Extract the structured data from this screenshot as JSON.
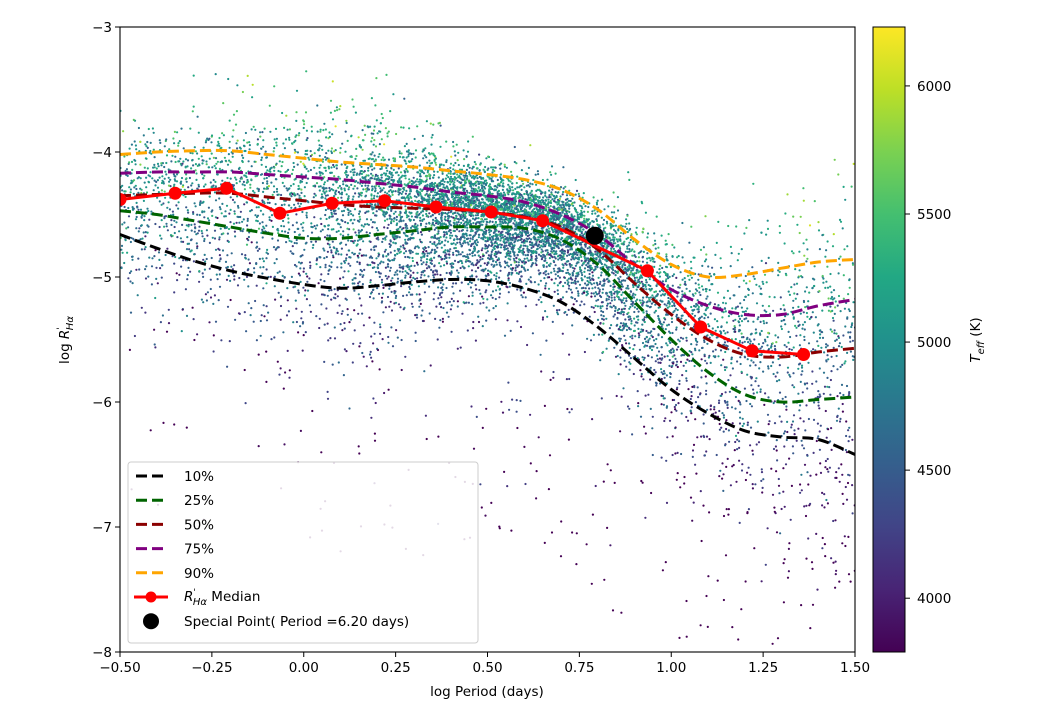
{
  "chart_data": {
    "type": "scatter",
    "xlabel": "log Period (days)",
    "ylabel": {
      "prefix": "log ",
      "symbol": "R",
      "superscript": "'",
      "subscript": "Hα"
    },
    "xlim": [
      -0.5,
      1.5
    ],
    "ylim": [
      -8,
      -3
    ],
    "x_ticks": [
      -0.5,
      -0.25,
      0.0,
      0.25,
      0.5,
      0.75,
      1.0,
      1.25,
      1.5
    ],
    "x_tick_labels": [
      "−0.50",
      "−0.25",
      "0.00",
      "0.25",
      "0.50",
      "0.75",
      "1.00",
      "1.25",
      "1.50"
    ],
    "y_ticks": [
      -3,
      -4,
      -5,
      -6,
      -7,
      -8
    ],
    "y_tick_labels": [
      "−3",
      "−4",
      "−5",
      "−6",
      "−7",
      "−8"
    ],
    "grid": false,
    "colorbar": {
      "label_symbol": "T",
      "label_subscript": "eff",
      "label_unit": " (K)",
      "colormap": "viridis",
      "range": [
        3790,
        6230
      ],
      "ticks": [
        4000,
        4500,
        5000,
        5500,
        6000
      ],
      "tick_labels": [
        "4000",
        "4500",
        "5000",
        "5500",
        "6000"
      ]
    },
    "scatter": {
      "description": "Stars colored by effective temperature",
      "approx_count": 9000,
      "seed": 12345
    },
    "percentile_curves": [
      {
        "name": "10%",
        "color": "#000000",
        "x": [
          -0.5,
          -0.4,
          -0.3,
          -0.2,
          -0.1,
          0.0,
          0.1,
          0.2,
          0.3,
          0.4,
          0.5,
          0.6,
          0.7,
          0.8,
          0.9,
          1.0,
          1.1,
          1.2,
          1.3,
          1.4,
          1.5
        ],
        "y": [
          -4.66,
          -4.77,
          -4.87,
          -4.95,
          -5.01,
          -5.06,
          -5.09,
          -5.07,
          -5.04,
          -5.02,
          -5.03,
          -5.09,
          -5.2,
          -5.4,
          -5.65,
          -5.9,
          -6.09,
          -6.23,
          -6.28,
          -6.3,
          -6.42
        ]
      },
      {
        "name": "25%",
        "color": "#006400",
        "x": [
          -0.5,
          -0.4,
          -0.3,
          -0.2,
          -0.1,
          0.0,
          0.1,
          0.2,
          0.3,
          0.4,
          0.5,
          0.6,
          0.7,
          0.8,
          0.9,
          1.0,
          1.1,
          1.2,
          1.3,
          1.4,
          1.5
        ],
        "y": [
          -4.47,
          -4.5,
          -4.55,
          -4.6,
          -4.65,
          -4.69,
          -4.69,
          -4.66,
          -4.63,
          -4.6,
          -4.6,
          -4.61,
          -4.7,
          -4.9,
          -5.2,
          -5.5,
          -5.76,
          -5.94,
          -6.0,
          -5.98,
          -5.96
        ]
      },
      {
        "name": "50%",
        "color": "#8b0000",
        "x": [
          -0.5,
          -0.4,
          -0.3,
          -0.2,
          -0.1,
          0.0,
          0.1,
          0.2,
          0.3,
          0.4,
          0.5,
          0.6,
          0.7,
          0.8,
          0.9,
          1.0,
          1.1,
          1.2,
          1.3,
          1.4,
          1.5
        ],
        "y": [
          -4.35,
          -4.34,
          -4.33,
          -4.33,
          -4.36,
          -4.39,
          -4.42,
          -4.44,
          -4.45,
          -4.46,
          -4.48,
          -4.52,
          -4.6,
          -4.78,
          -5.05,
          -5.3,
          -5.5,
          -5.62,
          -5.64,
          -5.6,
          -5.57
        ]
      },
      {
        "name": "75%",
        "color": "#800080",
        "x": [
          -0.5,
          -0.4,
          -0.3,
          -0.2,
          -0.1,
          0.0,
          0.1,
          0.2,
          0.3,
          0.4,
          0.5,
          0.6,
          0.7,
          0.8,
          0.9,
          1.0,
          1.1,
          1.2,
          1.3,
          1.4,
          1.5
        ],
        "y": [
          -4.17,
          -4.16,
          -4.16,
          -4.16,
          -4.18,
          -4.2,
          -4.22,
          -4.25,
          -4.28,
          -4.32,
          -4.35,
          -4.4,
          -4.5,
          -4.66,
          -4.9,
          -5.1,
          -5.23,
          -5.3,
          -5.3,
          -5.23,
          -5.18
        ]
      },
      {
        "name": "90%",
        "color": "#ffa500",
        "x": [
          -0.5,
          -0.4,
          -0.3,
          -0.2,
          -0.1,
          0.0,
          0.1,
          0.2,
          0.3,
          0.4,
          0.5,
          0.6,
          0.7,
          0.8,
          0.9,
          1.0,
          1.1,
          1.2,
          1.3,
          1.4,
          1.5
        ],
        "y": [
          -4.02,
          -4.0,
          -3.99,
          -3.99,
          -4.02,
          -4.05,
          -4.08,
          -4.1,
          -4.12,
          -4.15,
          -4.18,
          -4.22,
          -4.3,
          -4.46,
          -4.7,
          -4.9,
          -5.0,
          -4.98,
          -4.93,
          -4.88,
          -4.86
        ]
      }
    ],
    "median": {
      "label_symbol": "R",
      "label_superscript": "'",
      "label_subscript": "Hα",
      "label_suffix": " Median",
      "color": "#ff0000",
      "x": [
        -0.5,
        -0.35,
        -0.21,
        -0.065,
        0.077,
        0.22,
        0.36,
        0.51,
        0.65,
        0.935,
        1.08,
        1.22,
        1.36
      ],
      "y": [
        -4.38,
        -4.33,
        -4.29,
        -4.49,
        -4.41,
        -4.39,
        -4.44,
        -4.48,
        -4.55,
        -4.95,
        -5.4,
        -5.59,
        -5.62
      ]
    },
    "special_point": {
      "label": "Special Point( Period =6.20 days)",
      "period_days": 6.2,
      "x": 0.792,
      "y": -4.67,
      "color": "#000000"
    },
    "legend": {
      "placement": "lower-left",
      "entries": [
        "10%",
        "25%",
        "50%",
        "75%",
        "90%",
        "R'Hα Median",
        "Special Point( Period =6.20 days)"
      ]
    }
  }
}
